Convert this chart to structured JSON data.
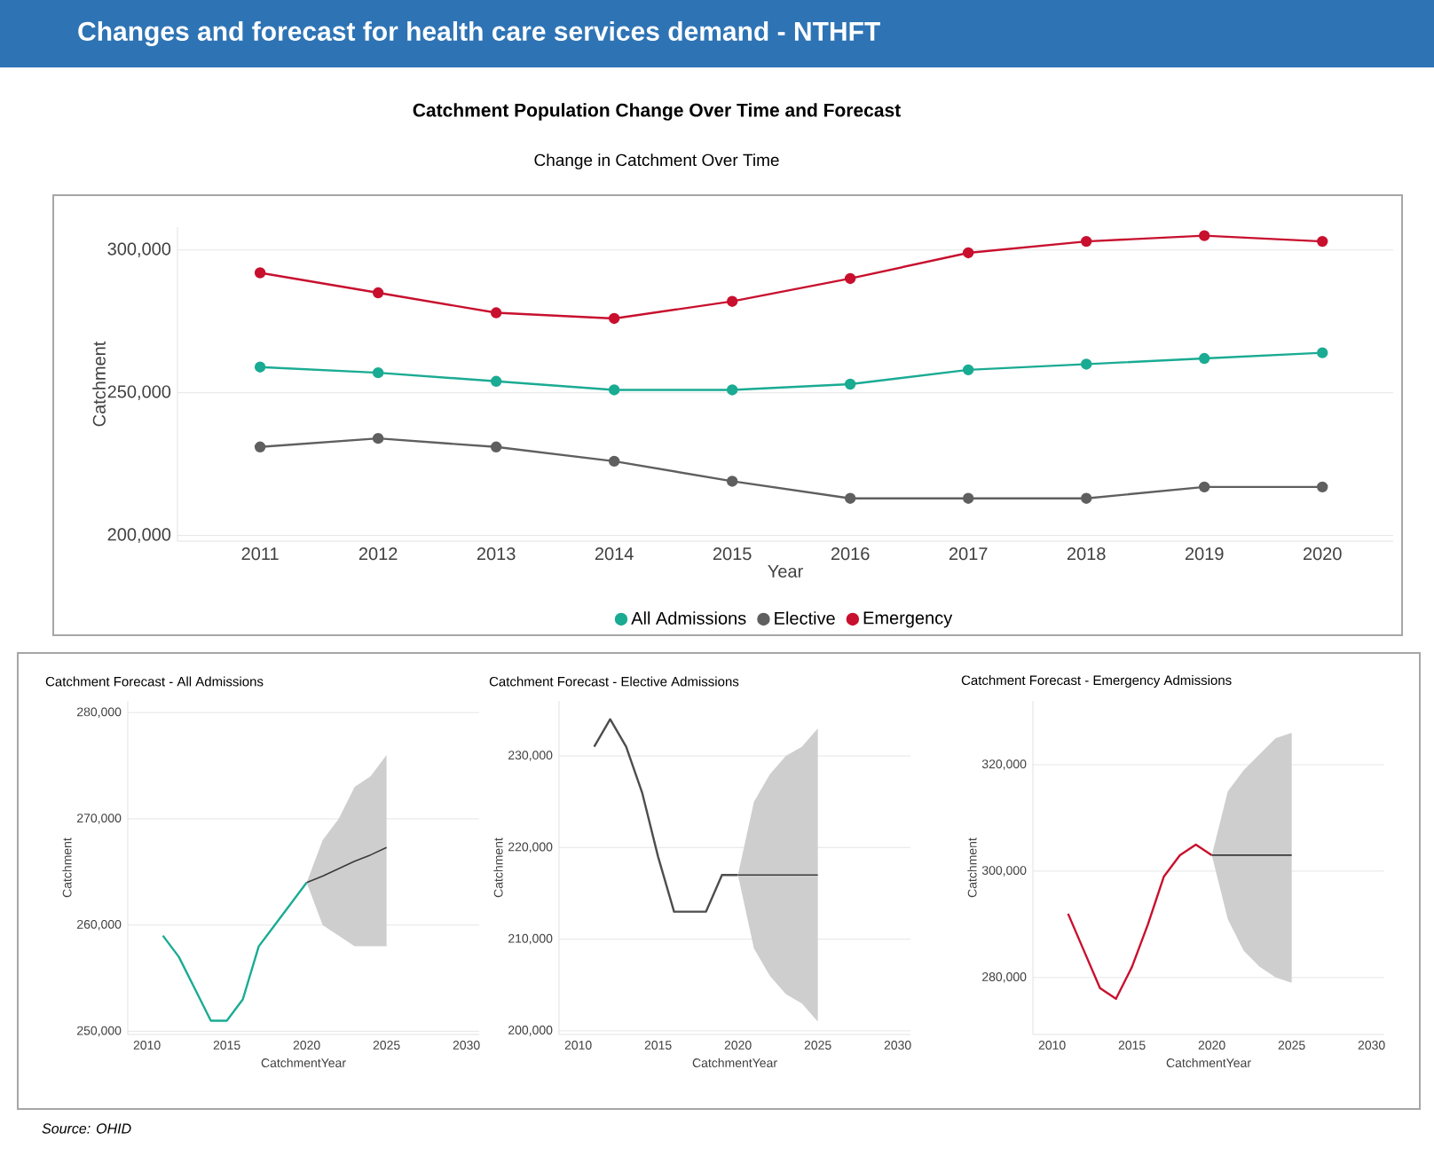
{
  "chart_data": [
    {
      "type": "line",
      "title": "Catchment Population Change Over Time and Forecast",
      "subtitle": "Change in Catchment Over Time",
      "annotations": [
        "Changes and forecast for health care services demand - NTHFT"
      ],
      "xlabel": "Year",
      "ylabel": "Catchment",
      "categories": [
        "2011",
        "2012",
        "2013",
        "2014",
        "2015",
        "2016",
        "2017",
        "2018",
        "2019",
        "2020"
      ],
      "series": [
        {
          "name": "All Admissions",
          "color": "#1aab93",
          "values": [
            259000,
            257000,
            254000,
            251000,
            251000,
            253000,
            258000,
            260000,
            262000,
            264000
          ]
        },
        {
          "name": "Elective",
          "color": "#5f5f5f",
          "values": [
            231000,
            234000,
            231000,
            226000,
            219000,
            213000,
            213000,
            213000,
            217000,
            217000
          ]
        },
        {
          "name": "Emergency",
          "color": "#c8102e",
          "values": [
            292000,
            285000,
            278000,
            276000,
            282000,
            290000,
            299000,
            303000,
            305000,
            303000
          ]
        }
      ],
      "ylim": [
        198000,
        308000
      ],
      "yticks": [
        {
          "value": 200000,
          "label": "200,000"
        },
        {
          "value": 250000,
          "label": "250,000"
        },
        {
          "value": 300000,
          "label": "300,000"
        }
      ],
      "grid": "y",
      "legend": "bottom",
      "marker": "circle"
    },
    {
      "type": "line",
      "title": "Catchment Forecast - All Admissions",
      "xlabel": "CatchmentYear",
      "ylabel": "Catchment",
      "series": [
        {
          "color": "#1aab93",
          "x": [
            2011,
            2012,
            2013,
            2014,
            2015,
            2016,
            2017,
            2018,
            2019,
            2020
          ],
          "values": [
            259000,
            257000,
            254000,
            251000,
            251000,
            253000,
            258000,
            260000,
            262000,
            264000
          ]
        },
        {
          "color": "#3a3a3a",
          "x": [
            2020,
            2021,
            2022,
            2023,
            2024,
            2025
          ],
          "values": [
            264000,
            264600,
            265300,
            266000,
            266600,
            267300
          ],
          "lower": [
            264000,
            260000,
            259000,
            258000,
            258000,
            258000
          ],
          "upper": [
            264000,
            268000,
            270000,
            273000,
            274000,
            276000
          ]
        }
      ],
      "xlim": [
        2008.8,
        2030.8
      ],
      "xticks": [
        2010,
        2015,
        2020,
        2025,
        2030
      ],
      "ylim": [
        249700,
        281100
      ],
      "yticks": [
        {
          "value": 250000,
          "label": "250,000"
        },
        {
          "value": 260000,
          "label": "260,000"
        },
        {
          "value": 270000,
          "label": "270,000"
        },
        {
          "value": 280000,
          "label": "280,000"
        }
      ],
      "grid": "y"
    },
    {
      "type": "line",
      "title": "Catchment Forecast - Elective Admissions",
      "xlabel": "CatchmentYear",
      "ylabel": "Catchment",
      "series": [
        {
          "color": "#4d4d4d",
          "x": [
            2011,
            2012,
            2013,
            2014,
            2015,
            2016,
            2017,
            2018,
            2019,
            2020
          ],
          "values": [
            231000,
            234000,
            231000,
            226000,
            219000,
            213000,
            213000,
            213000,
            217000,
            217000
          ]
        },
        {
          "color": "#3a3a3a",
          "x": [
            2020,
            2021,
            2022,
            2023,
            2024,
            2025
          ],
          "values": [
            217000,
            217000,
            217000,
            217000,
            217000,
            217000
          ],
          "lower": [
            217000,
            209000,
            206000,
            204000,
            203000,
            201000
          ],
          "upper": [
            217000,
            225000,
            228000,
            230000,
            231000,
            233000
          ]
        }
      ],
      "xlim": [
        2008.8,
        2030.8
      ],
      "xticks": [
        2010,
        2015,
        2020,
        2025,
        2030
      ],
      "ylim": [
        199600,
        236000
      ],
      "yticks": [
        {
          "value": 200000,
          "label": "200,000"
        },
        {
          "value": 210000,
          "label": "210,000"
        },
        {
          "value": 220000,
          "label": "220,000"
        },
        {
          "value": 230000,
          "label": "230,000"
        }
      ],
      "grid": "y"
    },
    {
      "type": "line",
      "title": "Catchment Forecast - Emergency Admissions",
      "xlabel": "CatchmentYear",
      "ylabel": "Catchment",
      "annotations": [
        "Source: OHID"
      ],
      "series": [
        {
          "color": "#c8102e",
          "x": [
            2011,
            2012,
            2013,
            2014,
            2015,
            2016,
            2017,
            2018,
            2019,
            2020
          ],
          "values": [
            292000,
            285000,
            278000,
            276000,
            282000,
            290000,
            299000,
            303000,
            305000,
            303000
          ]
        },
        {
          "color": "#3a3a3a",
          "x": [
            2020,
            2021,
            2022,
            2023,
            2024,
            2025
          ],
          "values": [
            303000,
            303000,
            303000,
            303000,
            303000,
            303000
          ],
          "lower": [
            303000,
            291000,
            285000,
            282000,
            280000,
            279000
          ],
          "upper": [
            303000,
            315000,
            319000,
            322000,
            325000,
            326000
          ]
        }
      ],
      "xlim": [
        2008.8,
        2030.8
      ],
      "xticks": [
        2010,
        2015,
        2020,
        2025,
        2030
      ],
      "ylim": [
        269300,
        332000
      ],
      "yticks": [
        {
          "value": 280000,
          "label": "280,000"
        },
        {
          "value": 300000,
          "label": "300,000"
        },
        {
          "value": 320000,
          "label": "320,000"
        }
      ],
      "grid": "y"
    }
  ]
}
